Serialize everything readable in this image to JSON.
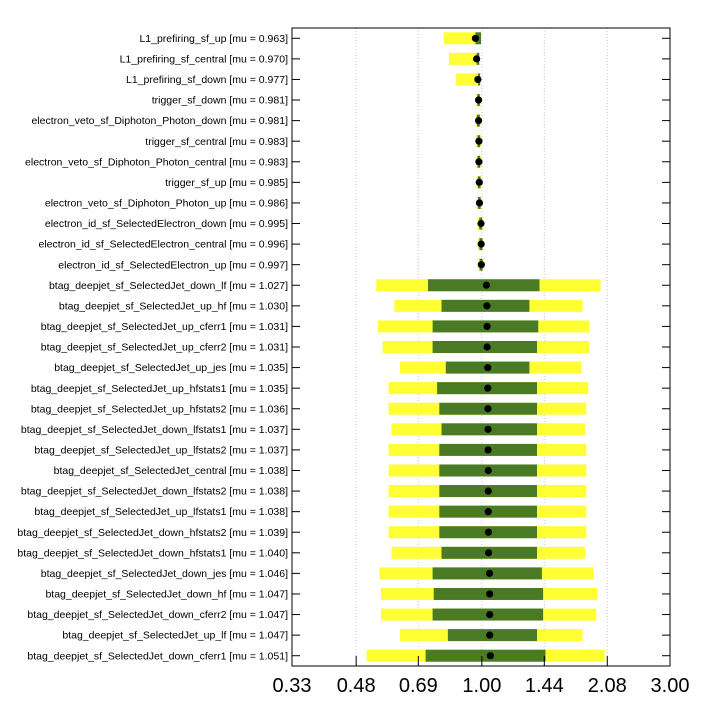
{
  "chart_data": {
    "type": "box",
    "x_scale": "log",
    "xlim": [
      0.33,
      3.0
    ],
    "x_ticks": [
      "0.33",
      "0.48",
      "0.69",
      "1.00",
      "1.44",
      "2.08",
      "3.00"
    ],
    "grid": "vertical dotted",
    "colors": {
      "outer_band": "#ffff33",
      "inner_band": "#4a7a23",
      "marker": "#000000"
    },
    "rows": [
      {
        "label": "L1_prefiring_sf_up [mu = 0.963]",
        "mu": 0.963,
        "outer": [
          0.8,
          0.963
        ],
        "inner": [
          0.963,
          0.995
        ]
      },
      {
        "label": "L1_prefiring_sf_central [mu = 0.970]",
        "mu": 0.97,
        "outer": [
          0.825,
          0.97
        ],
        "inner": [
          0.97,
          0.985
        ]
      },
      {
        "label": "L1_prefiring_sf_down [mu = 0.977]",
        "mu": 0.977,
        "outer": [
          0.86,
          0.977
        ],
        "inner": [
          0.977,
          0.99
        ]
      },
      {
        "label": "trigger_sf_down [mu = 0.981]",
        "mu": 0.981,
        "outer": [
          0.968,
          0.992
        ],
        "inner": [
          0.974,
          0.988
        ]
      },
      {
        "label": "electron_veto_sf_Diphoton_Photon_down [mu = 0.981]",
        "mu": 0.981,
        "outer": [
          0.965,
          0.992
        ],
        "inner": [
          0.972,
          0.988
        ]
      },
      {
        "label": "trigger_sf_central [mu = 0.983]",
        "mu": 0.983,
        "outer": [
          0.968,
          0.994
        ],
        "inner": [
          0.975,
          0.99
        ]
      },
      {
        "label": "electron_veto_sf_Diphoton_Photon_central [mu = 0.983]",
        "mu": 0.983,
        "outer": [
          0.968,
          0.994
        ],
        "inner": [
          0.975,
          0.99
        ]
      },
      {
        "label": "trigger_sf_up [mu = 0.985]",
        "mu": 0.985,
        "outer": [
          0.97,
          0.996
        ],
        "inner": [
          0.977,
          0.992
        ]
      },
      {
        "label": "electron_veto_sf_Diphoton_Photon_up [mu = 0.986]",
        "mu": 0.986,
        "outer": [
          0.972,
          0.997
        ],
        "inner": [
          0.978,
          0.993
        ]
      },
      {
        "label": "electron_id_sf_SelectedElectron_down [mu = 0.995]",
        "mu": 0.995,
        "outer": [
          0.978,
          1.006
        ],
        "inner": [
          0.985,
          1.002
        ]
      },
      {
        "label": "electron_id_sf_SelectedElectron_central [mu = 0.996]",
        "mu": 0.996,
        "outer": [
          0.979,
          1.007
        ],
        "inner": [
          0.986,
          1.003
        ]
      },
      {
        "label": "electron_id_sf_SelectedElectron_up [mu = 0.997]",
        "mu": 0.997,
        "outer": [
          0.98,
          1.008
        ],
        "inner": [
          0.987,
          1.004
        ]
      },
      {
        "label": "btag_deepjet_sf_SelectedJet_down_lf [mu = 1.027]",
        "mu": 1.027,
        "outer": [
          0.54,
          2.0
        ],
        "inner": [
          0.73,
          1.4
        ]
      },
      {
        "label": "btag_deepjet_sf_SelectedJet_up_hf [mu = 1.030]",
        "mu": 1.03,
        "outer": [
          0.6,
          1.8
        ],
        "inner": [
          0.79,
          1.32
        ]
      },
      {
        "label": "btag_deepjet_sf_SelectedJet_up_cferr1 [mu = 1.031]",
        "mu": 1.031,
        "outer": [
          0.545,
          1.87
        ],
        "inner": [
          0.75,
          1.39
        ]
      },
      {
        "label": "btag_deepjet_sf_SelectedJet_up_cferr2 [mu = 1.031]",
        "mu": 1.031,
        "outer": [
          0.56,
          1.87
        ],
        "inner": [
          0.75,
          1.38
        ]
      },
      {
        "label": "btag_deepjet_sf_SelectedJet_up_jes [mu = 1.035]",
        "mu": 1.035,
        "outer": [
          0.62,
          1.79
        ],
        "inner": [
          0.81,
          1.32
        ]
      },
      {
        "label": "btag_deepjet_sf_SelectedJet_up_hfstats1 [mu = 1.035]",
        "mu": 1.035,
        "outer": [
          0.58,
          1.86
        ],
        "inner": [
          0.77,
          1.38
        ]
      },
      {
        "label": "btag_deepjet_sf_SelectedJet_up_hfstats2 [mu = 1.036]",
        "mu": 1.036,
        "outer": [
          0.58,
          1.84
        ],
        "inner": [
          0.78,
          1.38
        ]
      },
      {
        "label": "btag_deepjet_sf_SelectedJet_down_lfstats1 [mu = 1.037]",
        "mu": 1.037,
        "outer": [
          0.59,
          1.83
        ],
        "inner": [
          0.79,
          1.38
        ]
      },
      {
        "label": "btag_deepjet_sf_SelectedJet_up_lfstats2 [mu = 1.037]",
        "mu": 1.037,
        "outer": [
          0.58,
          1.84
        ],
        "inner": [
          0.78,
          1.38
        ]
      },
      {
        "label": "btag_deepjet_sf_SelectedJet_central [mu = 1.038]",
        "mu": 1.038,
        "outer": [
          0.58,
          1.84
        ],
        "inner": [
          0.78,
          1.38
        ]
      },
      {
        "label": "btag_deepjet_sf_SelectedJet_down_lfstats2 [mu = 1.038]",
        "mu": 1.038,
        "outer": [
          0.58,
          1.84
        ],
        "inner": [
          0.78,
          1.38
        ]
      },
      {
        "label": "btag_deepjet_sf_SelectedJet_up_lfstats1 [mu = 1.038]",
        "mu": 1.038,
        "outer": [
          0.58,
          1.84
        ],
        "inner": [
          0.78,
          1.38
        ]
      },
      {
        "label": "btag_deepjet_sf_SelectedJet_down_hfstats2 [mu = 1.039]",
        "mu": 1.039,
        "outer": [
          0.58,
          1.84
        ],
        "inner": [
          0.78,
          1.38
        ]
      },
      {
        "label": "btag_deepjet_sf_SelectedJet_down_hfstats1 [mu = 1.040]",
        "mu": 1.04,
        "outer": [
          0.59,
          1.83
        ],
        "inner": [
          0.79,
          1.38
        ]
      },
      {
        "label": "btag_deepjet_sf_SelectedJet_down_jes [mu = 1.046]",
        "mu": 1.046,
        "outer": [
          0.55,
          1.92
        ],
        "inner": [
          0.75,
          1.42
        ]
      },
      {
        "label": "btag_deepjet_sf_SelectedJet_down_hf [mu = 1.047]",
        "mu": 1.047,
        "outer": [
          0.555,
          1.96
        ],
        "inner": [
          0.755,
          1.43
        ]
      },
      {
        "label": "btag_deepjet_sf_SelectedJet_down_cferr2 [mu = 1.047]",
        "mu": 1.047,
        "outer": [
          0.555,
          1.95
        ],
        "inner": [
          0.75,
          1.43
        ]
      },
      {
        "label": "btag_deepjet_sf_SelectedJet_up_lf [mu = 1.047]",
        "mu": 1.047,
        "outer": [
          0.62,
          1.8
        ],
        "inner": [
          0.82,
          1.38
        ]
      },
      {
        "label": "btag_deepjet_sf_SelectedJet_down_cferr1 [mu = 1.051]",
        "mu": 1.051,
        "outer": [
          0.51,
          2.05
        ],
        "inner": [
          0.72,
          1.45
        ]
      }
    ]
  }
}
